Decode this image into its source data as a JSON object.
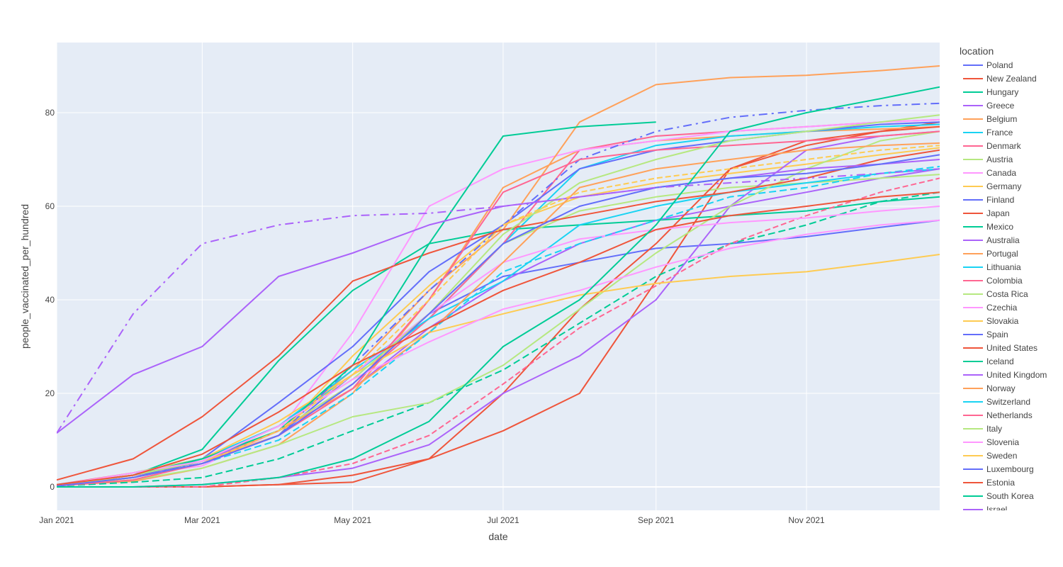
{
  "chart_data": {
    "type": "line",
    "xlabel": "date",
    "ylabel": "people_vaccinated_per_hundred",
    "legend_title": "location",
    "legend_position": "right",
    "grid": true,
    "x_range": [
      "2021-01-01",
      "2021-12-25"
    ],
    "y_range": [
      -5,
      95
    ],
    "x_ticks": [
      {
        "date": "2021-01-01",
        "label": "Jan 2021"
      },
      {
        "date": "2021-03-01",
        "label": "Mar 2021"
      },
      {
        "date": "2021-05-01",
        "label": "May 2021"
      },
      {
        "date": "2021-07-01",
        "label": "Jul 2021"
      },
      {
        "date": "2021-09-01",
        "label": "Sep 2021"
      },
      {
        "date": "2021-11-01",
        "label": "Nov 2021"
      }
    ],
    "y_ticks": [
      0,
      20,
      40,
      60,
      80
    ],
    "x_dates": [
      "2021-01-01",
      "2021-02-01",
      "2021-03-01",
      "2021-04-01",
      "2021-05-01",
      "2021-06-01",
      "2021-07-01",
      "2021-08-01",
      "2021-09-01",
      "2021-10-01",
      "2021-11-01",
      "2021-12-01",
      "2021-12-25"
    ],
    "series": [
      {
        "name": "Poland",
        "color": "#636efa",
        "values": [
          0.3,
          2.0,
          5.5,
          11.0,
          24.0,
          37.0,
          45.0,
          48.0,
          51.0,
          52.0,
          53.5,
          55.5,
          57.0
        ]
      },
      {
        "name": "New Zealand",
        "color": "#ef553b",
        "values": [
          0,
          0,
          0,
          0.5,
          2.5,
          6.0,
          12.0,
          20.0,
          44.0,
          68.0,
          73.0,
          76.0,
          78.0
        ]
      },
      {
        "name": "Hungary",
        "color": "#00cc96",
        "values": [
          0.3,
          2.5,
          8.0,
          27.0,
          42.0,
          52.0,
          55.0,
          56.0,
          57.0,
          58.0,
          59.0,
          61.0,
          62.0
        ]
      },
      {
        "name": "Greece",
        "color": "#ab63fa",
        "values": [
          0.3,
          2.5,
          5.5,
          12.0,
          21.0,
          34.0,
          44.0,
          52.0,
          57.0,
          60.0,
          63.0,
          66.0,
          68.0
        ]
      },
      {
        "name": "Belgium",
        "color": "#ffa15a",
        "values": [
          0.3,
          1.2,
          4.0,
          9.0,
          20.0,
          40.0,
          64.0,
          72.0,
          74.0,
          75.0,
          76.0,
          76.5,
          77.0
        ]
      },
      {
        "name": "France",
        "color": "#19d3f3",
        "values": [
          0.3,
          3.0,
          6.0,
          13.0,
          24.0,
          36.0,
          52.0,
          68.0,
          73.0,
          75.0,
          76.0,
          77.0,
          77.5
        ]
      },
      {
        "name": "Denmark",
        "color": "#ff6692",
        "values": [
          0.5,
          3.0,
          6.0,
          12.0,
          22.0,
          36.0,
          52.0,
          72.0,
          75.0,
          76.0,
          77.0,
          78.0,
          78.5
        ]
      },
      {
        "name": "Austria",
        "color": "#b6e880",
        "values": [
          0.3,
          3.0,
          6.0,
          12.0,
          22.0,
          37.0,
          52.0,
          59.0,
          62.0,
          64.0,
          65.0,
          66.0,
          66.8
        ]
      },
      {
        "name": "Canada",
        "color": "#ff97ff",
        "values": [
          0.5,
          2.5,
          4.5,
          12.0,
          33.0,
          60.0,
          68.0,
          72.0,
          74.0,
          76.0,
          77.0,
          78.0,
          78.5
        ]
      },
      {
        "name": "Germany",
        "color": "#fecb52",
        "values": [
          0.3,
          2.5,
          5.5,
          11.0,
          28.0,
          43.0,
          56.0,
          62.0,
          65.0,
          67.0,
          69.0,
          71.0,
          72.5
        ]
      },
      {
        "name": "Finland",
        "color": "#636efa",
        "values": [
          0.2,
          2.0,
          6.0,
          18.0,
          30.0,
          46.0,
          56.0,
          68.0,
          72.0,
          74.0,
          76.0,
          77.5,
          78.0
        ]
      },
      {
        "name": "Japan",
        "color": "#ef553b",
        "values": [
          0,
          0,
          0,
          0.5,
          1.0,
          6.0,
          20.0,
          38.0,
          52.0,
          68.0,
          74.0,
          76.0,
          77.0
        ]
      },
      {
        "name": "Mexico",
        "color": "#00cc96",
        "values": [
          0.2,
          1.0,
          2.0,
          6.0,
          12.0,
          18.0,
          25.0,
          35.0,
          45.0,
          52.0,
          56.0,
          61.0,
          63.0
        ]
      },
      {
        "name": "Australia",
        "color": "#ab63fa",
        "values": [
          0,
          0,
          0.5,
          2.0,
          4.0,
          9.0,
          20.0,
          28.0,
          40.0,
          60.0,
          72.0,
          75.0,
          76.0
        ]
      },
      {
        "name": "Portugal",
        "color": "#ffa15a",
        "values": [
          0.3,
          2.0,
          5.0,
          12.0,
          25.0,
          42.0,
          55.0,
          78.0,
          86.0,
          87.5,
          88.0,
          89.0,
          90.0
        ]
      },
      {
        "name": "Lithuania",
        "color": "#19d3f3",
        "values": [
          0.3,
          2.5,
          6.0,
          13.0,
          25.0,
          36.0,
          44.0,
          56.0,
          60.0,
          63.0,
          65.0,
          67.0,
          68.0
        ]
      },
      {
        "name": "Colombia",
        "color": "#ff6692",
        "values": [
          0,
          0,
          0,
          2.0,
          5.0,
          11.0,
          22.0,
          34.0,
          43.0,
          52.0,
          58.0,
          63.0,
          66.0
        ]
      },
      {
        "name": "Costa Rica",
        "color": "#b6e880",
        "values": [
          0.5,
          1.5,
          4.0,
          9.0,
          15.0,
          18.0,
          26.0,
          38.0,
          50.0,
          60.0,
          68.0,
          74.0,
          76.0
        ]
      },
      {
        "name": "Czechia",
        "color": "#ff97ff",
        "values": [
          0.3,
          2.0,
          5.0,
          12.0,
          24.0,
          37.0,
          48.0,
          53.0,
          55.0,
          56.5,
          57.5,
          59.0,
          60.0
        ]
      },
      {
        "name": "Slovakia",
        "color": "#fecb52",
        "values": [
          0.3,
          2.5,
          6.0,
          14.0,
          24.0,
          33.0,
          37.0,
          41.0,
          43.5,
          45.0,
          46.0,
          48.0,
          49.7
        ]
      },
      {
        "name": "Spain",
        "color": "#636efa",
        "values": [
          0.3,
          2.5,
          5.0,
          11.0,
          26.0,
          42.0,
          56.0,
          70.0,
          76.0,
          79.0,
          80.5,
          81.5,
          82.0
        ]
      },
      {
        "name": "United States",
        "color": "#ef553b",
        "values": [
          1.5,
          6.0,
          15.0,
          28.0,
          44.0,
          50.0,
          55.0,
          58.0,
          61.0,
          63.0,
          66.0,
          70.0,
          72.0
        ]
      },
      {
        "name": "Iceland",
        "color": "#00cc96",
        "values": [
          0.5,
          2.5,
          6.0,
          12.0,
          26.0,
          52.0,
          75.0,
          77.0,
          78.0,
          null,
          null,
          null,
          null
        ]
      },
      {
        "name": "United Kingdom",
        "color": "#ab63fa",
        "values": [
          11.5,
          24.0,
          30.0,
          45.0,
          50.0,
          56.0,
          60.0,
          62.0,
          64.0,
          66.0,
          68.0,
          69.0,
          70.0
        ]
      },
      {
        "name": "Norway",
        "color": "#ffa15a",
        "values": [
          0.3,
          2.0,
          5.0,
          12.0,
          21.0,
          33.0,
          48.0,
          64.0,
          68.0,
          70.0,
          72.0,
          73.0,
          73.5
        ]
      },
      {
        "name": "Switzerland",
        "color": "#19d3f3",
        "values": [
          0.3,
          2.0,
          5.0,
          10.0,
          20.0,
          33.0,
          46.0,
          52.0,
          57.0,
          62.0,
          64.0,
          67.0,
          68.5
        ]
      },
      {
        "name": "Netherlands",
        "color": "#ff6692",
        "values": [
          0.2,
          1.5,
          5.0,
          11.0,
          21.0,
          40.0,
          63.0,
          70.0,
          72.0,
          73.0,
          74.0,
          75.0,
          76.0
        ]
      },
      {
        "name": "Italy",
        "color": "#b6e880",
        "values": [
          0.3,
          2.5,
          5.5,
          13.0,
          23.0,
          37.0,
          54.0,
          65.0,
          70.0,
          74.0,
          76.0,
          78.0,
          79.5
        ]
      },
      {
        "name": "Slovenia",
        "color": "#ff97ff",
        "values": [
          0.3,
          3.0,
          5.5,
          13.0,
          23.0,
          31.0,
          38.0,
          42.0,
          47.0,
          51.0,
          54.0,
          56.0,
          57.0
        ]
      },
      {
        "name": "Sweden",
        "color": "#fecb52",
        "values": [
          0.3,
          2.0,
          5.0,
          12.0,
          24.0,
          40.0,
          56.0,
          63.0,
          66.0,
          68.0,
          70.0,
          72.0,
          73.0
        ]
      },
      {
        "name": "Luxembourg",
        "color": "#636efa",
        "values": [
          0.2,
          2.0,
          5.0,
          11.0,
          22.0,
          37.0,
          52.0,
          60.0,
          64.0,
          66.0,
          67.0,
          69.0,
          71.0
        ]
      },
      {
        "name": "Estonia",
        "color": "#ef553b",
        "values": [
          0.5,
          2.5,
          7.0,
          16.0,
          26.0,
          34.0,
          42.0,
          48.0,
          55.0,
          58.0,
          60.0,
          62.0,
          63.0
        ]
      },
      {
        "name": "South Korea",
        "color": "#00cc96",
        "values": [
          0,
          0,
          0.5,
          2.0,
          6.0,
          14.0,
          30.0,
          40.0,
          56.0,
          76.0,
          80.0,
          83.0,
          85.5
        ]
      },
      {
        "name": "Israel",
        "color": "#ab63fa",
        "values": [
          11.5,
          37.0,
          52.0,
          56.0,
          58.0,
          58.5,
          60.0,
          62.0,
          64.0,
          65.0,
          66.0,
          67.0,
          68.0
        ]
      }
    ]
  }
}
